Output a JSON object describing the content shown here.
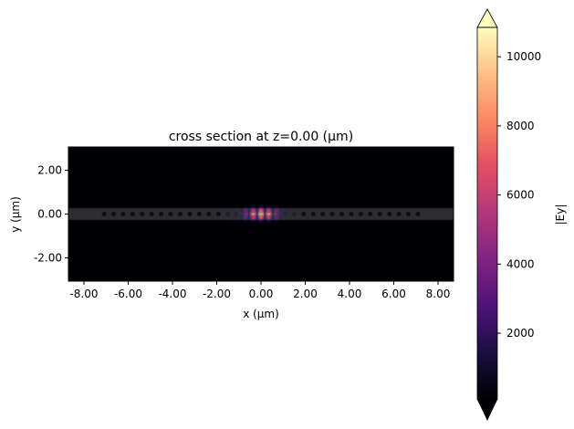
{
  "chart_data": {
    "type": "heatmap",
    "title": "cross section at z=0.00 (µm)",
    "xlabel": "x (µm)",
    "ylabel": "y (µm)",
    "xlim": [
      -8.7,
      8.7
    ],
    "ylim": [
      -3.06,
      3.06
    ],
    "xticks": [
      -8,
      -6,
      -4,
      -2,
      0,
      2,
      4,
      6,
      8
    ],
    "xtick_labels": [
      "-8.00",
      "-6.00",
      "-4.00",
      "-2.00",
      "0.00",
      "2.00",
      "4.00",
      "6.00",
      "8.00"
    ],
    "yticks": [
      -2,
      0,
      2
    ],
    "ytick_labels": [
      "-2.00",
      "0.00",
      "2.00"
    ],
    "colormap": "magma",
    "colorbar": {
      "label": "|Ey|",
      "range": [
        100,
        10850
      ],
      "ticks": [
        2000,
        4000,
        6000,
        8000,
        10000
      ],
      "tick_labels": [
        "2000",
        "4000",
        "6000",
        "8000",
        "10000"
      ],
      "extend": "both"
    },
    "waveguide": {
      "y_center": 0,
      "width": 0.5,
      "color": "#3a3a40"
    },
    "holes_x": [
      -7.09,
      -6.66,
      -6.23,
      -5.8,
      -5.37,
      -4.94,
      -4.51,
      -4.08,
      -3.65,
      -3.22,
      -2.79,
      -2.36,
      -1.93,
      -1.5,
      -1.1,
      -0.72,
      -0.35,
      0,
      0.35,
      0.72,
      1.1,
      1.5,
      1.93,
      2.36,
      2.79,
      3.22,
      3.65,
      4.08,
      4.51,
      4.94,
      5.37,
      5.8,
      6.23,
      6.66,
      7.09
    ],
    "field_peak": 10850,
    "grid": false
  }
}
